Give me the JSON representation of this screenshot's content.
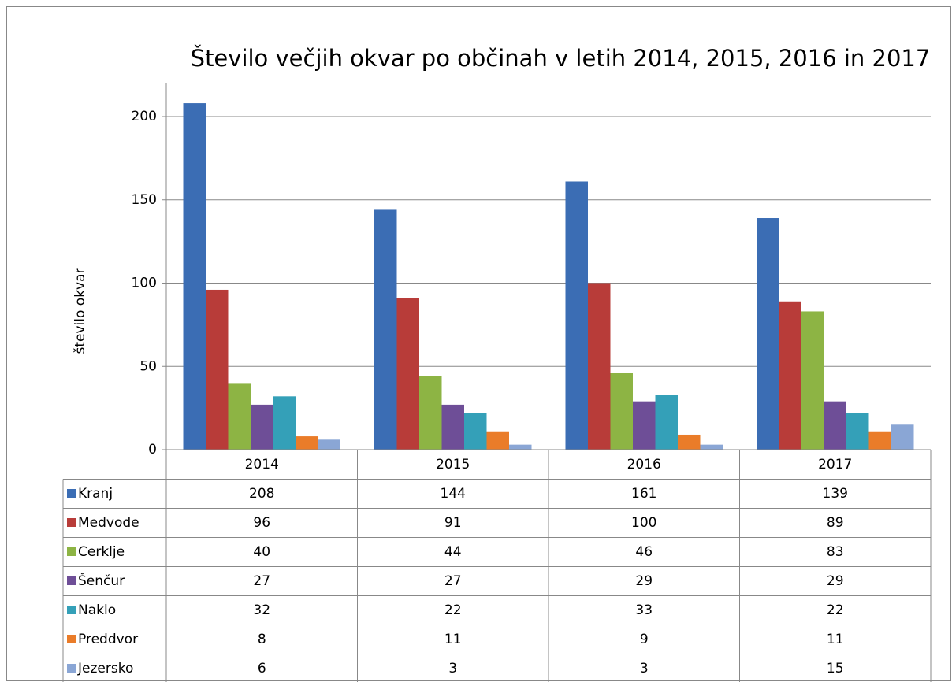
{
  "chart_data": {
    "type": "bar",
    "title": "Število večjih okvar po občinah v letih 2014, 2015, 2016 in 2017",
    "y_label": "število okvar",
    "categories": [
      "2014",
      "2015",
      "2016",
      "2017"
    ],
    "series": [
      {
        "name": "Kranj",
        "color": "#3b6db4",
        "values": [
          208,
          144,
          161,
          139
        ]
      },
      {
        "name": "Medvode",
        "color": "#b83c39",
        "values": [
          96,
          91,
          100,
          89
        ]
      },
      {
        "name": "Cerklje",
        "color": "#8db444",
        "values": [
          40,
          44,
          46,
          83
        ]
      },
      {
        "name": "Šenčur",
        "color": "#6e4e97",
        "values": [
          27,
          27,
          29,
          29
        ]
      },
      {
        "name": "Naklo",
        "color": "#34a0b8",
        "values": [
          32,
          22,
          33,
          22
        ]
      },
      {
        "name": "Preddvor",
        "color": "#ea7c29",
        "values": [
          8,
          11,
          9,
          11
        ]
      },
      {
        "name": "Jezersko",
        "color": "#8aa6d5",
        "values": [
          6,
          3,
          3,
          15
        ]
      }
    ],
    "ylim": [
      0,
      220
    ],
    "yticks": [
      0,
      50,
      100,
      150,
      200
    ],
    "grid": true
  }
}
